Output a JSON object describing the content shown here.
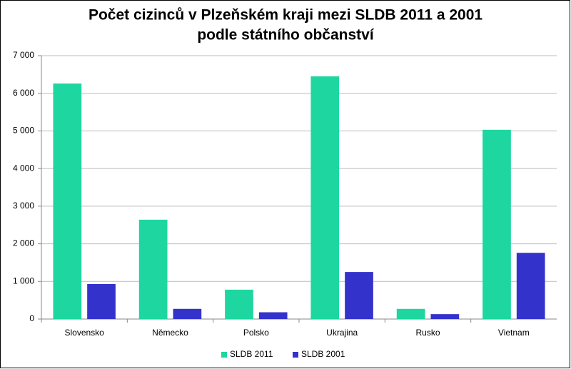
{
  "chart_data": {
    "type": "bar",
    "title": [
      "Počet cizinců v Plzeňském kraji mezi SLDB 2011 a 2001",
      "podle státního občanství"
    ],
    "categories": [
      "Slovensko",
      "Německo",
      "Polsko",
      "Ukrajina",
      "Rusko",
      "Vietnam"
    ],
    "series": [
      {
        "name": "SLDB 2011",
        "color": "#1ed6a0",
        "values": [
          6260,
          2640,
          780,
          6450,
          270,
          5030
        ]
      },
      {
        "name": "SLDB 2001",
        "color": "#3333cc",
        "values": [
          930,
          270,
          180,
          1250,
          130,
          1760
        ]
      }
    ],
    "ylim": [
      0,
      7000
    ],
    "yticks": [
      0,
      {
        "value": 1000,
        "label": "1 000"
      },
      {
        "value": 2000,
        "label": "2 000"
      },
      {
        "value": 3000,
        "label": "3 000"
      },
      {
        "value": 4000,
        "label": "4 000"
      },
      {
        "value": 5000,
        "label": "5 000"
      },
      {
        "value": 6000,
        "label": "6 000"
      },
      {
        "value": 7000,
        "label": "7 000"
      }
    ],
    "grid": true,
    "legend": "bottom"
  }
}
